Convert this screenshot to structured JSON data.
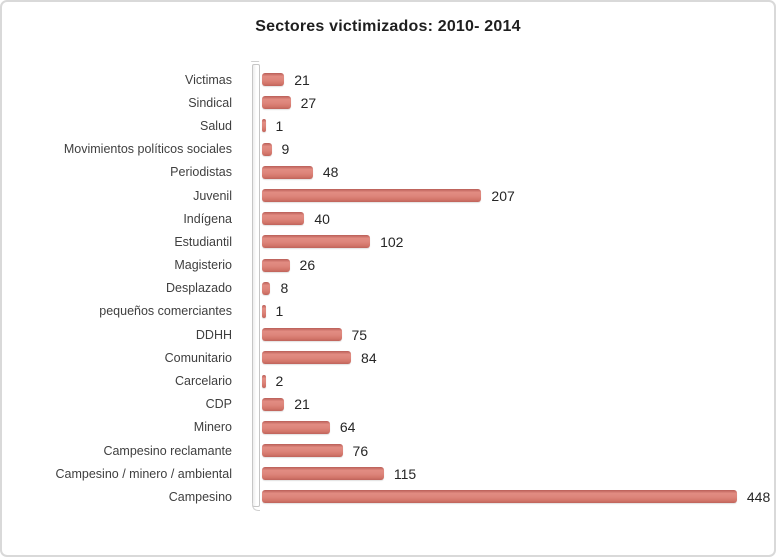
{
  "chart_data": {
    "type": "bar",
    "orientation": "horizontal",
    "title": "Sectores victimizados: 2010- 2014",
    "categories": [
      "Victimas",
      "Sindical",
      "Salud",
      "Movimientos políticos sociales",
      "Periodistas",
      "Juvenil",
      "Indígena",
      "Estudiantil",
      "Magisterio",
      "Desplazado",
      "pequeños comerciantes",
      "DDHH",
      "Comunitario",
      "Carcelario",
      "CDP",
      "Minero",
      "Campesino reclamante",
      "Campesino / minero / ambiental",
      "Campesino"
    ],
    "values": [
      21,
      27,
      1,
      9,
      48,
      207,
      40,
      102,
      26,
      8,
      1,
      75,
      84,
      2,
      21,
      64,
      76,
      115,
      448
    ],
    "xlabel": "",
    "ylabel": "",
    "xlim": [
      0,
      460
    ],
    "grid": false,
    "legend": false,
    "data_labels": true,
    "bar_color": "#d9827a",
    "bar_edge_color": "#bf635b",
    "title_color": "#1f1f1f",
    "label_color": "#3f3f3f",
    "value_color": "#262626",
    "frame_border_color": "#d9d9d9"
  }
}
